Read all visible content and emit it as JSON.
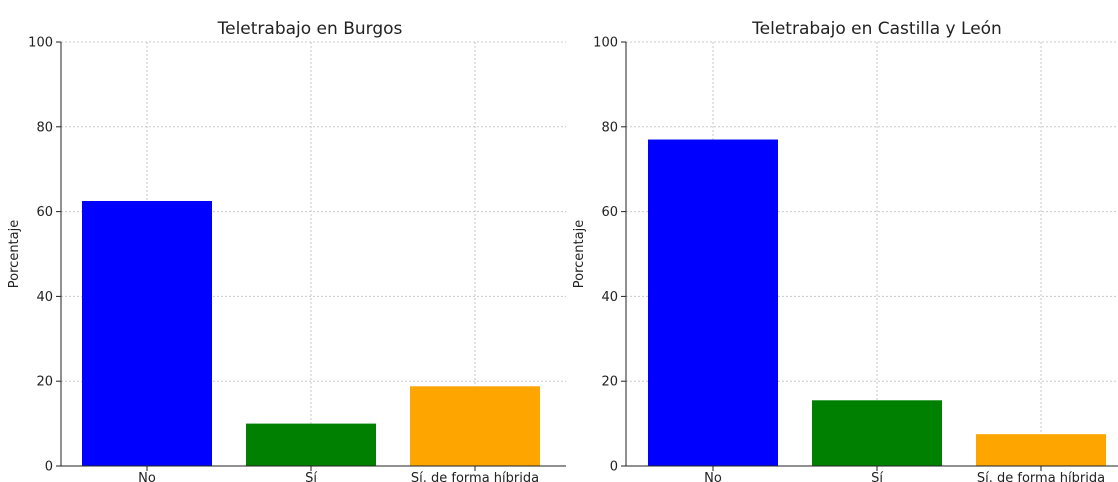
{
  "chart_data": [
    {
      "type": "bar",
      "title": "Teletrabajo en Burgos",
      "xlabel": "",
      "ylabel": "Porcentaje",
      "ylim": [
        0,
        100
      ],
      "yticks": [
        0,
        20,
        40,
        60,
        80,
        100
      ],
      "grid": true,
      "categories": [
        "No",
        "Sí",
        "Sí. de forma híbrida"
      ],
      "values": [
        62.5,
        10,
        18.8
      ],
      "colors": [
        "#0000ff",
        "#008000",
        "#ffa500"
      ]
    },
    {
      "type": "bar",
      "title": "Teletrabajo en Castilla y León",
      "xlabel": "",
      "ylabel": "Porcentaje",
      "ylim": [
        0,
        100
      ],
      "yticks": [
        0,
        20,
        40,
        60,
        80,
        100
      ],
      "grid": true,
      "categories": [
        "No",
        "Sí",
        "Sí. de forma híbrida"
      ],
      "values": [
        77,
        15.5,
        7.5
      ],
      "colors": [
        "#0000ff",
        "#008000",
        "#ffa500"
      ]
    }
  ]
}
